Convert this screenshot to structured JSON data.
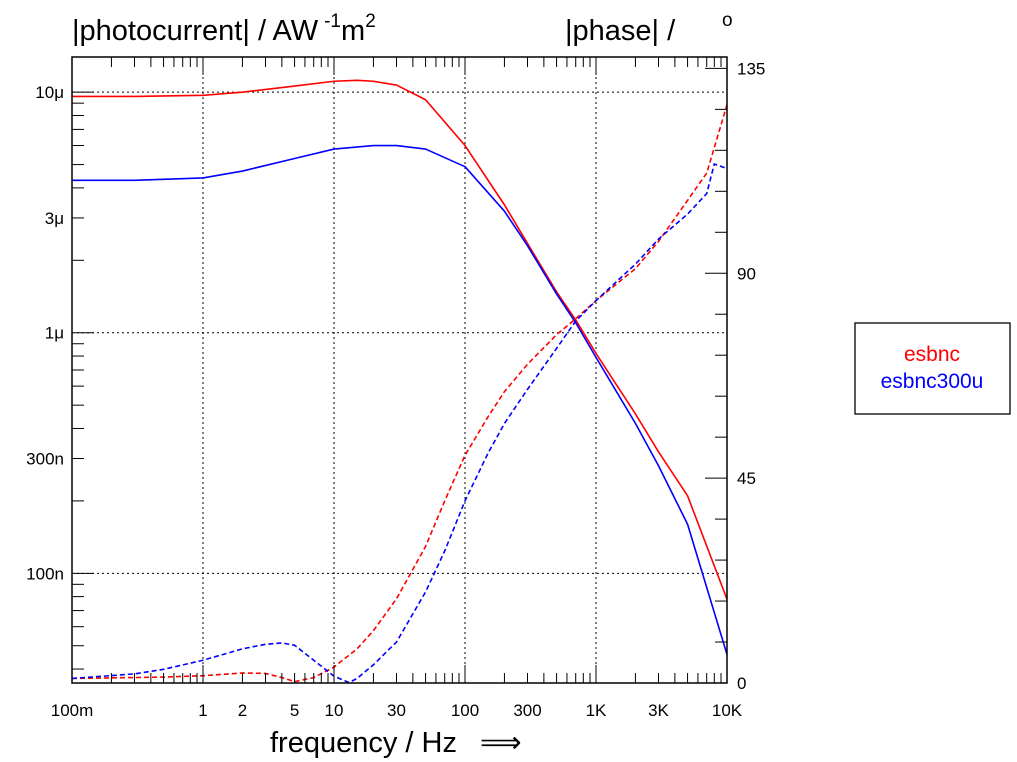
{
  "chart_data": {
    "type": "line",
    "ylabel_left": "|photocurrent| / AW",
    "ylabel_left_sup1": "-1",
    "ylabel_left_mid": "m",
    "ylabel_left_sup2": "2",
    "ylabel_right": "|phase| /",
    "ylabel_right_unit": "o",
    "xlabel": "frequency / Hz",
    "xlabel_arrow": "⟹",
    "x_scale": "log",
    "y_left_scale": "log",
    "y_right_scale": "linear",
    "xlim": [
      0.1,
      10000
    ],
    "ylim_left": [
      3.5e-08,
      1.4e-05
    ],
    "ylim_right": [
      0,
      137.5
    ],
    "grid": true,
    "legend_position": "right",
    "x_ticks": [
      {
        "value": 0.1,
        "label": "100m"
      },
      {
        "value": 1,
        "label": "1"
      },
      {
        "value": 2,
        "label": "2"
      },
      {
        "value": 5,
        "label": "5"
      },
      {
        "value": 10,
        "label": "10"
      },
      {
        "value": 30,
        "label": "30"
      },
      {
        "value": 100,
        "label": "100"
      },
      {
        "value": 300,
        "label": "300"
      },
      {
        "value": 1000,
        "label": "1K"
      },
      {
        "value": 3000,
        "label": "3K"
      },
      {
        "value": 10000,
        "label": "10K"
      }
    ],
    "x_grid": [
      1,
      10,
      100,
      1000
    ],
    "y_left_ticks": [
      {
        "value": 1e-05,
        "label": "10μ"
      },
      {
        "value": 3e-06,
        "label": "3μ"
      },
      {
        "value": 1e-06,
        "label": "1μ"
      },
      {
        "value": 3e-07,
        "label": "300n"
      },
      {
        "value": 1e-07,
        "label": "100n"
      }
    ],
    "y_left_grid": [
      1e-05,
      1e-06,
      1e-07
    ],
    "y_right_ticks": [
      {
        "value": 0,
        "label": "0"
      },
      {
        "value": 45,
        "label": "45"
      },
      {
        "value": 90,
        "label": "90"
      },
      {
        "value": 135,
        "label": "135"
      }
    ],
    "series": [
      {
        "name": "esbnc",
        "kind": "magnitude",
        "axis": "left",
        "color": "#ff0000",
        "dash": "solid",
        "x": [
          0.1,
          0.3,
          1,
          2,
          5,
          10,
          15,
          20,
          30,
          50,
          100,
          200,
          300,
          500,
          700,
          1000,
          2000,
          3000,
          5000,
          10000
        ],
        "y": [
          9.6e-06,
          9.6e-06,
          9.7e-06,
          1e-05,
          1.06e-05,
          1.11e-05,
          1.12e-05,
          1.11e-05,
          1.07e-05,
          9.3e-06,
          6e-06,
          3.4e-06,
          2.35e-06,
          1.48e-06,
          1.13e-06,
          8.2e-07,
          4.6e-07,
          3.2e-07,
          2.1e-07,
          7.8e-08
        ]
      },
      {
        "name": "esbnc300u",
        "kind": "magnitude",
        "axis": "left",
        "color": "#0000ff",
        "dash": "solid",
        "x": [
          0.1,
          0.3,
          1,
          2,
          5,
          10,
          20,
          30,
          50,
          100,
          200,
          300,
          500,
          700,
          1000,
          2000,
          3000,
          5000,
          10000
        ],
        "y": [
          4.3e-06,
          4.3e-06,
          4.4e-06,
          4.7e-06,
          5.3e-06,
          5.8e-06,
          6e-06,
          6e-06,
          5.8e-06,
          4.9e-06,
          3.2e-06,
          2.3e-06,
          1.45e-06,
          1.1e-06,
          7.9e-07,
          4.2e-07,
          2.8e-07,
          1.6e-07,
          4.6e-08
        ]
      },
      {
        "name": "esbnc",
        "kind": "phase",
        "axis": "right",
        "color": "#ff0000",
        "dash": "dashed",
        "x": [
          0.1,
          0.5,
          1,
          2,
          3,
          4,
          5,
          7,
          10,
          15,
          20,
          30,
          50,
          70,
          100,
          150,
          200,
          300,
          500,
          700,
          1000,
          2000,
          3000,
          5000,
          7000,
          10000
        ],
        "y": [
          1,
          1.3,
          1.6,
          2.2,
          2.1,
          1.2,
          0.3,
          1.2,
          3.5,
          7.5,
          11.5,
          18.5,
          30,
          40,
          50,
          58.5,
          64,
          70,
          76.5,
          80,
          84,
          91,
          97,
          106,
          112,
          127
        ]
      },
      {
        "name": "esbnc300u",
        "kind": "phase",
        "axis": "right",
        "color": "#0000ff",
        "dash": "dashed",
        "x": [
          0.1,
          0.3,
          0.5,
          1,
          2,
          3,
          4,
          5,
          7,
          10,
          13,
          15,
          20,
          30,
          50,
          70,
          100,
          150,
          200,
          300,
          500,
          700,
          1000,
          2000,
          3000,
          5000,
          7000,
          8000,
          10000
        ],
        "y": [
          1,
          2,
          3,
          5,
          7.5,
          8.5,
          8.8,
          8.3,
          5,
          1.5,
          0.1,
          1,
          4,
          9,
          20,
          29,
          40,
          50.5,
          57,
          64.5,
          73.5,
          79.5,
          84,
          92,
          97.5,
          103,
          107.5,
          114,
          113
        ]
      }
    ],
    "legend": [
      {
        "label": "esbnc",
        "color": "#ff0000"
      },
      {
        "label": "esbnc300u",
        "color": "#0000ff"
      }
    ]
  }
}
